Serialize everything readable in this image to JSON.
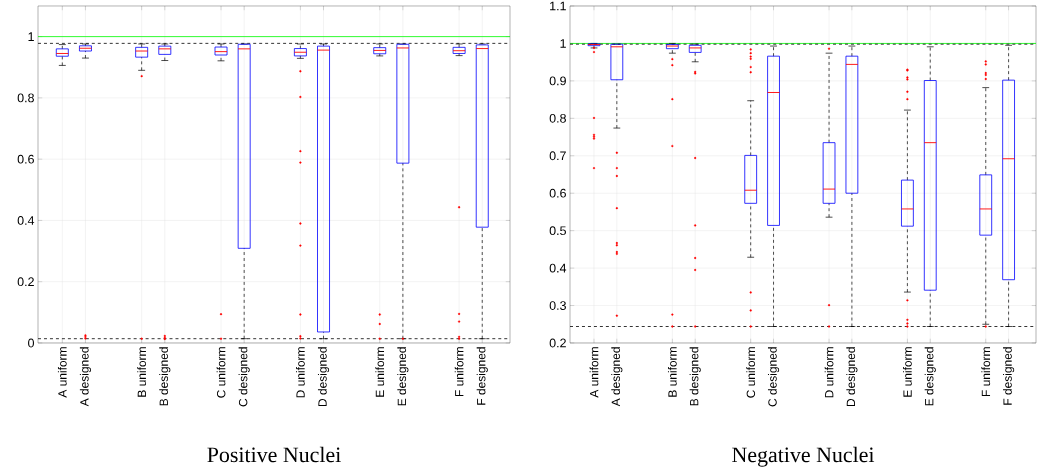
{
  "chart_data": [
    {
      "type": "box",
      "title": "Positive Nuclei",
      "categories": [
        "A uniform",
        "A designed",
        "B uniform",
        "B designed",
        "C uniform",
        "C designed",
        "D uniform",
        "D designed",
        "E uniform",
        "E designed",
        "F uniform",
        "F designed"
      ],
      "series": [
        {
          "color": "#0000ff",
          "boxes": [
            {
              "low": 0.906,
              "q1": 0.936,
              "median": 0.945,
              "q3": 0.96,
              "high": 0.974
            },
            {
              "low": 0.93,
              "q1": 0.953,
              "median": 0.962,
              "q3": 0.97,
              "high": 0.976,
              "outliers": [
                0.025,
                0.02,
                0.015
              ]
            },
            {
              "low": 0.89,
              "q1": 0.933,
              "median": 0.953,
              "q3": 0.965,
              "high": 0.976,
              "outliers": [
                0.871,
                0.014
              ]
            },
            {
              "low": 0.922,
              "q1": 0.942,
              "median": 0.96,
              "q3": 0.969,
              "high": 0.976,
              "outliers": [
                0.023,
                0.017,
                0.013
              ]
            },
            {
              "low": 0.921,
              "q1": 0.94,
              "median": 0.951,
              "q3": 0.966,
              "high": 0.976,
              "outliers": [
                0.094,
                0.014
              ]
            },
            {
              "low": 0.014,
              "q1": 0.309,
              "median": 0.96,
              "q3": 0.975,
              "high": 0.976
            },
            {
              "low": 0.929,
              "q1": 0.937,
              "median": 0.949,
              "q3": 0.961,
              "high": 0.976,
              "outliers": [
                0.887,
                0.803,
                0.626,
                0.589,
                0.39,
                0.318,
                0.093,
                0.022,
                0.015
              ]
            },
            {
              "low": 0.014,
              "q1": 0.036,
              "median": 0.956,
              "q3": 0.969,
              "high": 0.976
            },
            {
              "low": 0.937,
              "q1": 0.944,
              "median": 0.955,
              "q3": 0.964,
              "high": 0.976,
              "outliers": [
                0.093,
                0.062,
                0.014
              ]
            },
            {
              "low": 0.014,
              "q1": 0.587,
              "median": 0.963,
              "q3": 0.975,
              "high": 0.976,
              "outliers": [
                0.014
              ]
            },
            {
              "low": 0.938,
              "q1": 0.945,
              "median": 0.954,
              "q3": 0.965,
              "high": 0.976,
              "outliers": [
                0.443,
                0.095,
                0.07,
                0.02,
                0.014
              ]
            },
            {
              "low": 0.014,
              "q1": 0.378,
              "median": 0.961,
              "q3": 0.973,
              "high": 0.976
            }
          ]
        }
      ],
      "ylim": [
        0,
        1.1
      ],
      "yticks": [
        0,
        0.2,
        0.4,
        0.6,
        0.8,
        1
      ],
      "grid": true,
      "ref_lines": [
        {
          "axis": "y",
          "value": 1,
          "color": "#00ff00",
          "line_style": "solid"
        },
        {
          "axis": "y",
          "value": 0.978,
          "color": "#000000",
          "line_style": "dashed"
        },
        {
          "axis": "y",
          "value": 0.014,
          "color": "#000000",
          "line_style": "dashed"
        }
      ]
    },
    {
      "type": "box",
      "title": "Negative Nuclei",
      "categories": [
        "A uniform",
        "A designed",
        "B uniform",
        "B designed",
        "C uniform",
        "C designed",
        "D uniform",
        "D designed",
        "E uniform",
        "E designed",
        "F uniform",
        "F designed"
      ],
      "series": [
        {
          "color": "#0000ff",
          "boxes": [
            {
              "low": 0.988,
              "q1": 0.994,
              "median": 0.997,
              "q3": 0.999,
              "high": 1.0,
              "outliers": [
                0.988,
                0.977,
                0.801,
                0.756,
                0.751,
                0.746,
                0.667
              ]
            },
            {
              "low": 0.774,
              "q1": 0.903,
              "median": 0.991,
              "q3": 0.998,
              "high": 0.998,
              "outliers": [
                0.708,
                0.667,
                0.646,
                0.56,
                0.467,
                0.461,
                0.443,
                0.438,
                0.273
              ]
            },
            {
              "low": 0.974,
              "q1": 0.986,
              "median": 0.993,
              "q3": 0.997,
              "high": 1.0,
              "outliers": [
                0.958,
                0.942,
                0.851,
                0.726,
                0.276,
                0.244
              ]
            },
            {
              "low": 0.951,
              "q1": 0.976,
              "median": 0.988,
              "q3": 0.995,
              "high": 0.998,
              "outliers": [
                0.924,
                0.92,
                0.694,
                0.514,
                0.427,
                0.395,
                0.244
              ]
            },
            {
              "low": 0.429,
              "q1": 0.573,
              "median": 0.608,
              "q3": 0.701,
              "high": 0.847,
              "outliers": [
                0.984,
                0.974,
                0.965,
                0.959,
                0.937,
                0.923,
                0.335,
                0.287,
                0.244
              ]
            },
            {
              "low": 0.244,
              "q1": 0.514,
              "median": 0.869,
              "q3": 0.966,
              "high": 0.993
            },
            {
              "low": 0.536,
              "q1": 0.573,
              "median": 0.611,
              "q3": 0.735,
              "high": 0.974,
              "outliers": [
                0.986,
                0.301,
                0.244
              ]
            },
            {
              "low": 0.244,
              "q1": 0.6,
              "median": 0.944,
              "q3": 0.966,
              "high": 0.993
            },
            {
              "low": 0.336,
              "q1": 0.512,
              "median": 0.558,
              "q3": 0.635,
              "high": 0.822,
              "outliers": [
                0.93,
                0.928,
                0.909,
                0.904,
                0.871,
                0.851,
                0.314,
                0.262,
                0.252,
                0.244
              ]
            },
            {
              "low": 0.244,
              "q1": 0.341,
              "median": 0.735,
              "q3": 0.901,
              "high": 0.991
            },
            {
              "low": 0.25,
              "q1": 0.488,
              "median": 0.558,
              "q3": 0.649,
              "high": 0.882,
              "outliers": [
                0.952,
                0.944,
                0.921,
                0.916,
                0.905,
                0.244
              ]
            },
            {
              "low": 0.244,
              "q1": 0.369,
              "median": 0.692,
              "q3": 0.902,
              "high": 0.995
            }
          ]
        }
      ],
      "ylim": [
        0.2,
        1.1
      ],
      "yticks": [
        0.2,
        0.3,
        0.4,
        0.5,
        0.6,
        0.7,
        0.8,
        0.9,
        1,
        1.1
      ],
      "grid": true,
      "ref_lines": [
        {
          "axis": "y",
          "value": 1.0,
          "color": "#00ff00",
          "line_style": "solid"
        },
        {
          "axis": "y",
          "value": 0.998,
          "color": "#000000",
          "line_style": "dashed"
        },
        {
          "axis": "y",
          "value": 0.244,
          "color": "#000000",
          "line_style": "dashed"
        }
      ]
    }
  ]
}
